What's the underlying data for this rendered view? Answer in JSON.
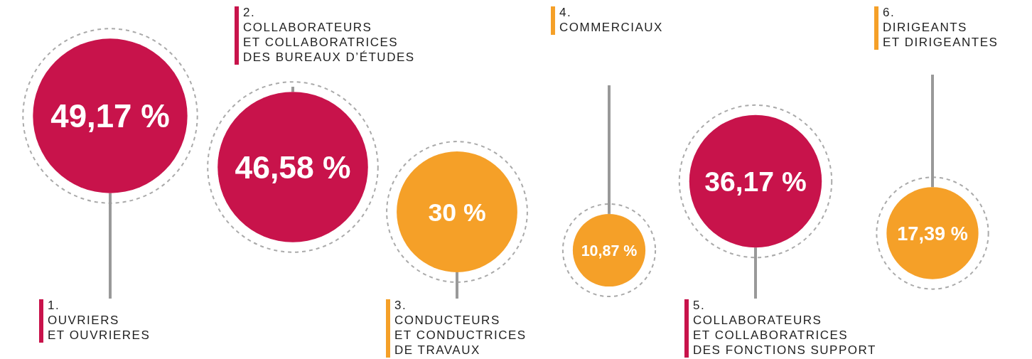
{
  "chart_data": {
    "type": "other",
    "categories": [
      "1.\nOUVRIERS\nET OUVRIERES",
      "2.\nCOLLABORATEURS\nET COLLABORATRICES\nDES BUREAUX D’ÉTUDES",
      "3.\nCONDUCTEURS\nET CONDUCTRICES\nDE TRAVAUX",
      "4.\nCOMMERCIAUX",
      "5.\nCOLLABORATEURS\nET COLLABORATRICES\nDES FONCTIONS SUPPORT",
      "6.\nDIRIGEANTS\nET DIRIGEANTES"
    ],
    "values": [
      49.17,
      46.58,
      30,
      10.87,
      36.17,
      17.39
    ],
    "value_labels": [
      "49,17 %",
      "46,58 %",
      "30 %",
      "10,87 %",
      "36,17 %",
      "17,39 %"
    ],
    "colors": [
      "#c8134b",
      "#c8134b",
      "#f5a028",
      "#f5a028",
      "#c8134b",
      "#f5a028"
    ]
  }
}
